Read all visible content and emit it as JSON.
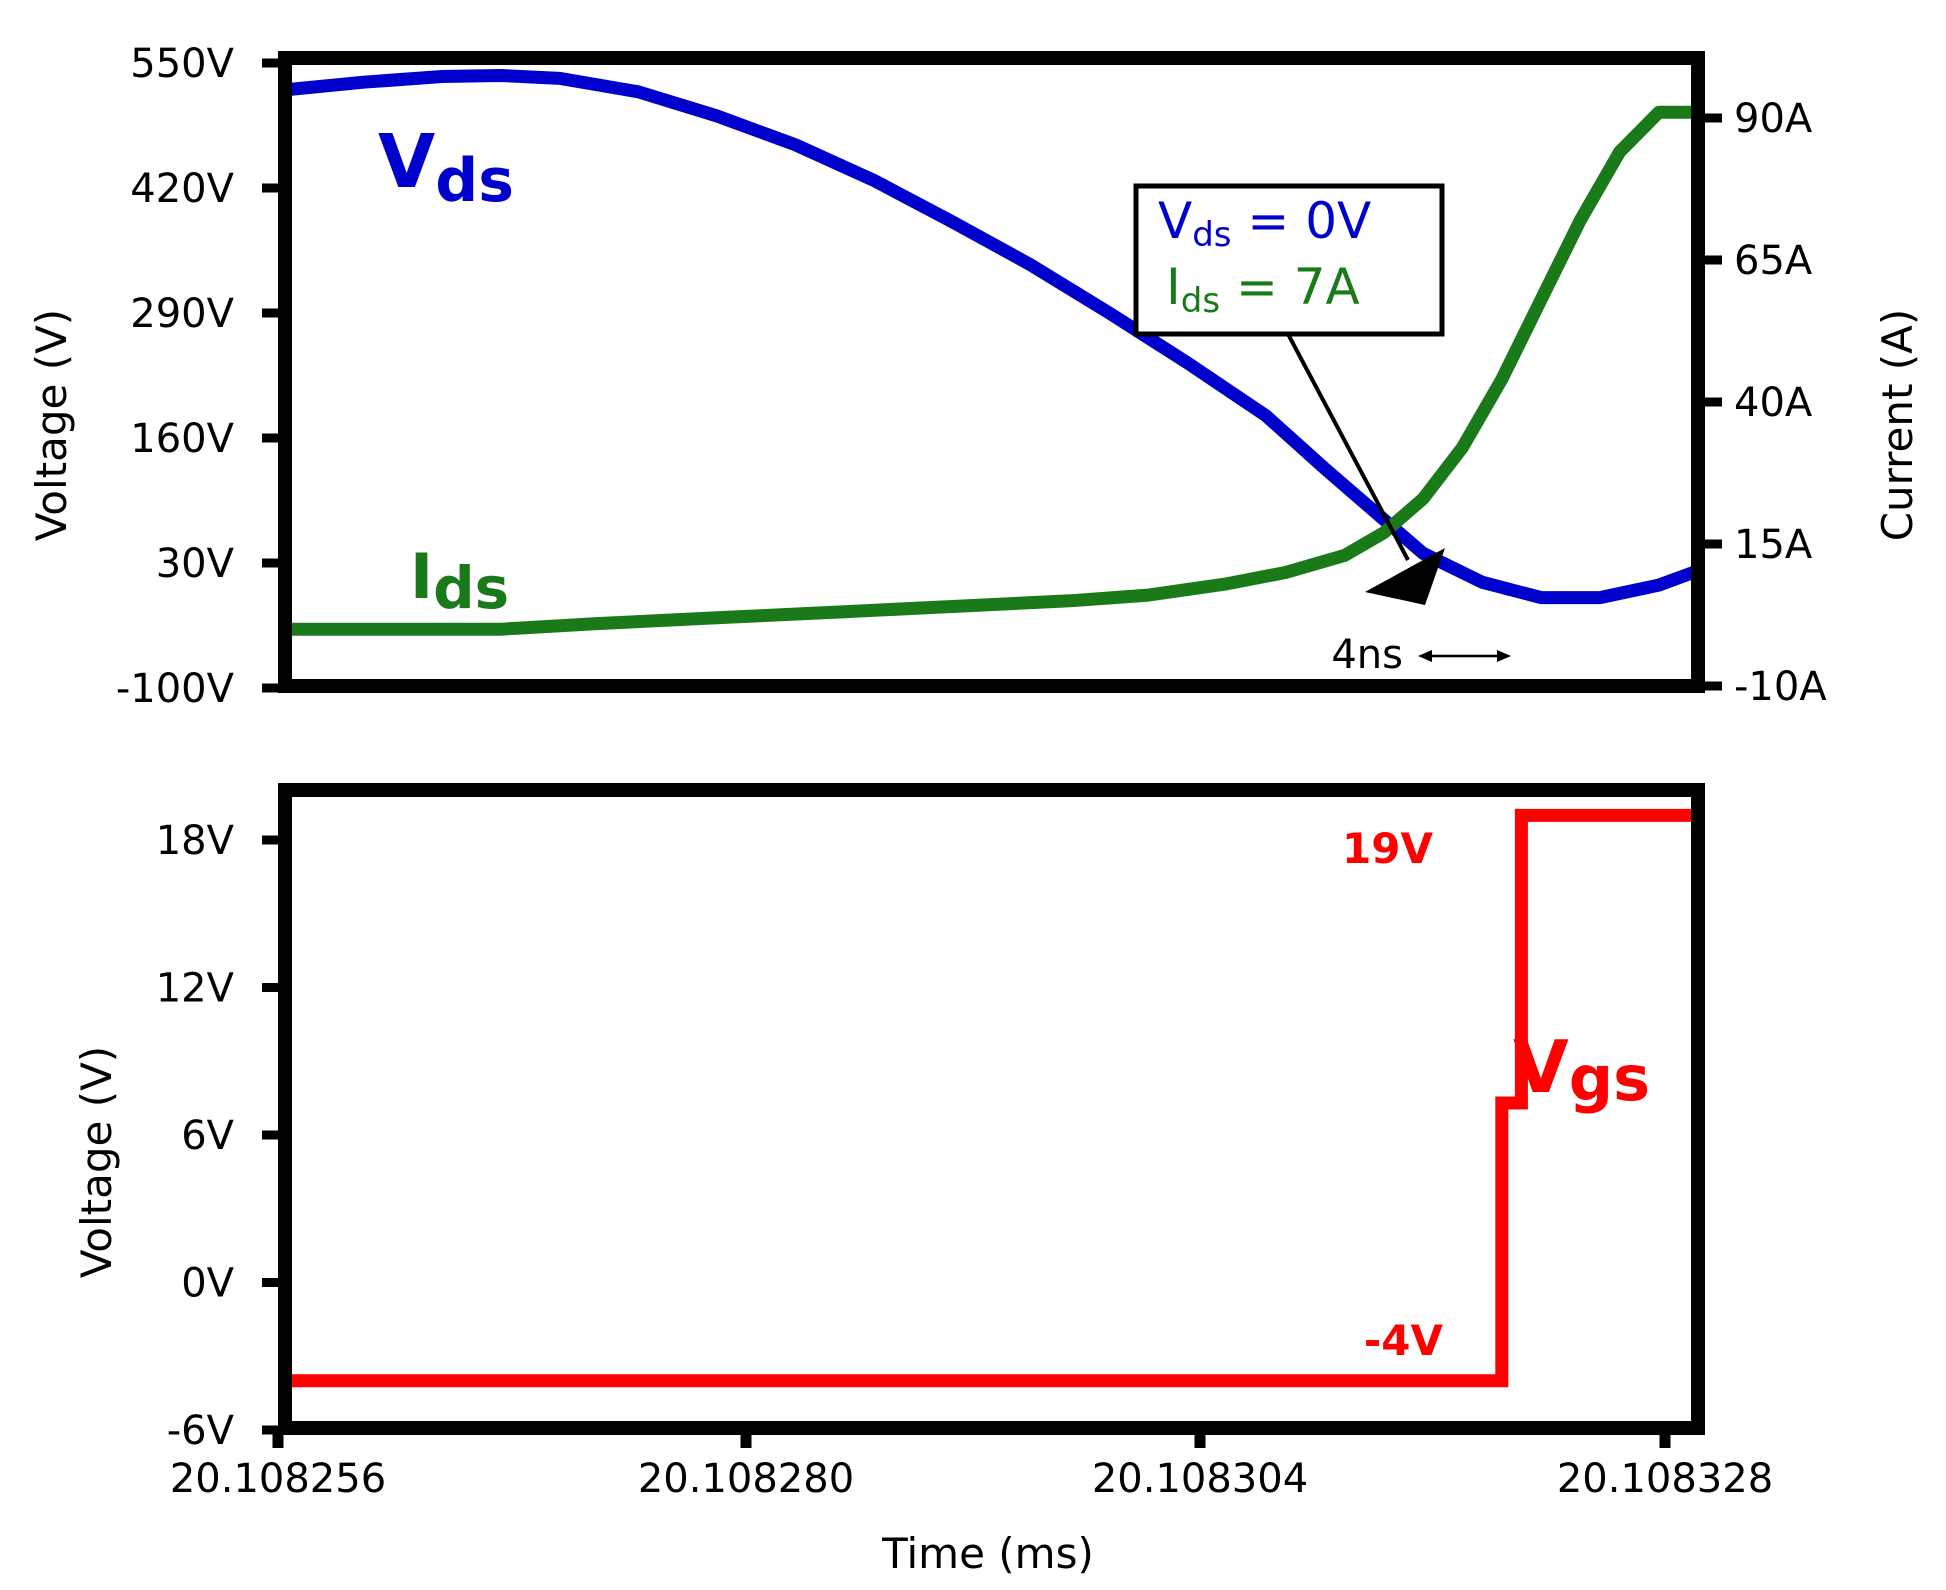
{
  "chart_data": [
    {
      "type": "line",
      "panel": "top",
      "xlabel": "",
      "ylabel_left": "Voltage (V)",
      "ylabel_right": "Current (A)",
      "xlim": [
        20.108256,
        20.108328
      ],
      "ylim_left": [
        -100,
        550
      ],
      "ylim_right": [
        -10,
        90
      ],
      "yticks_left": [
        "550V",
        "420V",
        "290V",
        "160V",
        "30V",
        "-100V"
      ],
      "yticks_right": [
        "90A",
        "65A",
        "40A",
        "15A",
        "-10A"
      ],
      "series": [
        {
          "name_main": "V",
          "name_sub": "ds",
          "axis": "left",
          "color": "#0000cc",
          "x": [
            20.108256,
            20.10826,
            20.108264,
            20.108267,
            20.10827,
            20.108274,
            20.108278,
            20.108282,
            20.108286,
            20.10829,
            20.108294,
            20.108298,
            20.108302,
            20.108306,
            20.108309,
            20.108312,
            20.108314,
            20.108317,
            20.10832,
            20.108323,
            20.108326,
            20.108328
          ],
          "y": [
            522,
            530,
            536,
            537,
            534,
            520,
            495,
            465,
            428,
            385,
            340,
            290,
            238,
            183,
            128,
            75,
            40,
            10,
            -6,
            -6,
            7,
            22
          ]
        },
        {
          "name_main": "I",
          "name_sub": "ds",
          "axis": "right",
          "color": "#1a7a1a",
          "x": [
            20.108256,
            20.108261,
            20.108267,
            20.108272,
            20.108278,
            20.108284,
            20.10829,
            20.108296,
            20.1083,
            20.108304,
            20.108307,
            20.10831,
            20.108312,
            20.108314,
            20.108316,
            20.108318,
            20.10832,
            20.108322,
            20.108324,
            20.108326,
            20.108328
          ],
          "y": [
            0,
            0,
            0,
            1,
            2,
            3,
            4,
            5,
            6,
            8,
            10,
            13,
            17,
            23,
            32,
            44,
            58,
            72,
            84,
            91,
            91
          ]
        }
      ],
      "annotation": {
        "vds_main": "V",
        "vds_sub": "ds",
        "vds_value": " = 0V",
        "ids_main": "I",
        "ids_sub": "ds",
        "ids_value": " = 7A",
        "vds_color": "#0000cc",
        "ids_color": "#1a7a1a",
        "arrow_target_x": 20.108308,
        "arrow_target_y": 30
      },
      "interval_label": "4ns",
      "interval_x": [
        20.108309,
        20.108313
      ]
    },
    {
      "type": "line",
      "panel": "bottom",
      "xlabel": "Time (ms)",
      "ylabel": "Voltage (V)",
      "xlim": [
        20.108256,
        20.108328
      ],
      "ylim": [
        -6,
        19
      ],
      "xticks": [
        "20.108256",
        "20.108280",
        "20.108304",
        "20.108328"
      ],
      "xtick_values": [
        20.108256,
        20.10828,
        20.108304,
        20.108328
      ],
      "yticks": [
        "18V",
        "12V",
        "6V",
        "0V",
        "-6V"
      ],
      "ytick_values": [
        18,
        12,
        6,
        0,
        -6
      ],
      "series": [
        {
          "name_main": "V",
          "name_sub": "gs",
          "color": "#ff0000",
          "x": [
            20.108256,
            20.108318,
            20.108318,
            20.108319,
            20.108319,
            20.108328
          ],
          "y": [
            -4,
            -4,
            7.3,
            7.3,
            19,
            19
          ]
        }
      ],
      "labels": {
        "high": "19V",
        "low": "-4V"
      }
    }
  ]
}
